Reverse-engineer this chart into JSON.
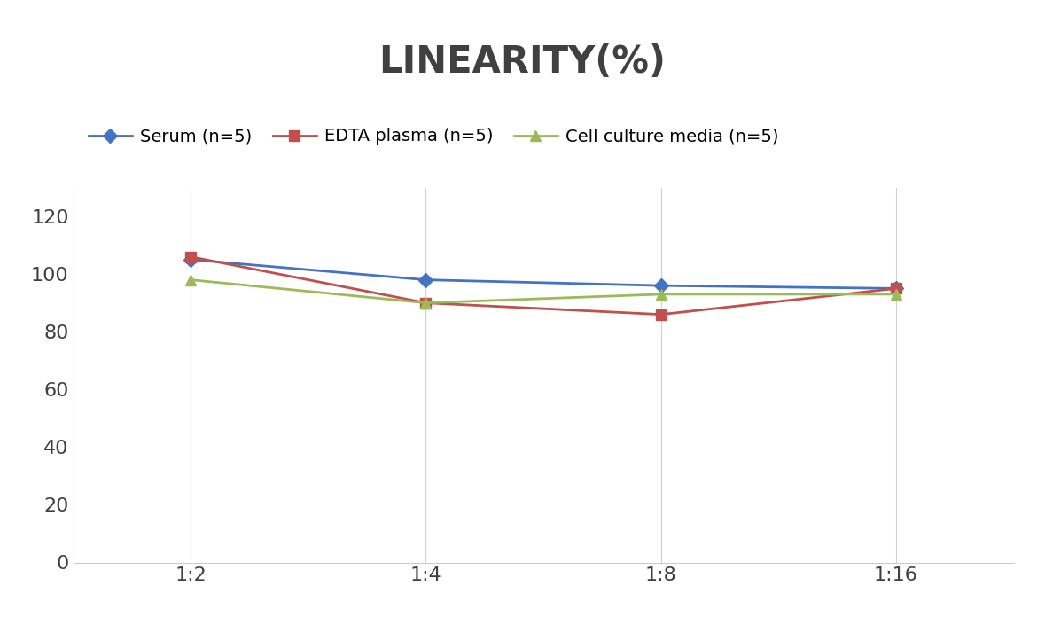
{
  "title": "LINEARITY(%)",
  "title_fontsize": 30,
  "title_fontweight": "bold",
  "title_color": "#404040",
  "x_labels": [
    "1:2",
    "1:4",
    "1:8",
    "1:16"
  ],
  "x_positions": [
    0,
    1,
    2,
    3
  ],
  "series": [
    {
      "label": "Serum (n=5)",
      "values": [
        105,
        98,
        96,
        95
      ],
      "color": "#4472C4",
      "marker": "D",
      "linewidth": 2,
      "markersize": 8
    },
    {
      "label": "EDTA plasma (n=5)",
      "values": [
        106,
        90,
        86,
        95
      ],
      "color": "#C0504D",
      "marker": "s",
      "linewidth": 2,
      "markersize": 8
    },
    {
      "label": "Cell culture media (n=5)",
      "values": [
        98,
        90,
        93,
        93
      ],
      "color": "#9BBB59",
      "marker": "^",
      "linewidth": 2,
      "markersize": 8
    }
  ],
  "ylim": [
    0,
    130
  ],
  "yticks": [
    0,
    20,
    40,
    60,
    80,
    100,
    120
  ],
  "ylabel": "",
  "xlabel": "",
  "legend_fontsize": 14,
  "tick_fontsize": 16,
  "background_color": "#ffffff",
  "grid_color": "#d0d0d0"
}
